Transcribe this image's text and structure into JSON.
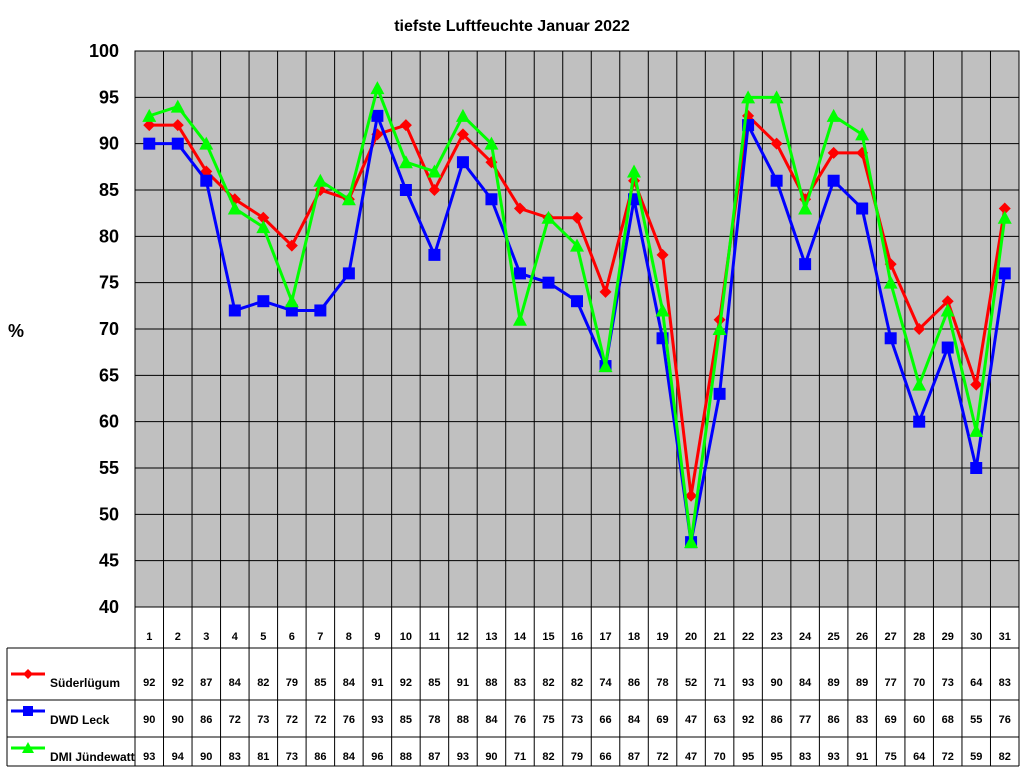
{
  "chart_data": {
    "type": "line",
    "title": "tiefste Luftfeuchte Januar 2022",
    "ylabel": "%",
    "xlabel": "",
    "ylim": [
      40,
      100
    ],
    "yticks": [
      40,
      45,
      50,
      55,
      60,
      65,
      70,
      75,
      80,
      85,
      90,
      95,
      100
    ],
    "grid": true,
    "legend": "data-table-left",
    "categories": [
      "1",
      "2",
      "3",
      "4",
      "5",
      "6",
      "7",
      "8",
      "9",
      "10",
      "11",
      "12",
      "13",
      "14",
      "15",
      "16",
      "17",
      "18",
      "19",
      "20",
      "21",
      "22",
      "23",
      "24",
      "25",
      "26",
      "27",
      "28",
      "29",
      "30",
      "31"
    ],
    "series": [
      {
        "name": "Süderlügum",
        "color": "#ff0000",
        "marker": "diamond",
        "values": [
          92,
          92,
          87,
          84,
          82,
          79,
          85,
          84,
          91,
          92,
          85,
          91,
          88,
          83,
          82,
          82,
          74,
          86,
          78,
          52,
          71,
          93,
          90,
          84,
          89,
          89,
          77,
          70,
          73,
          64,
          83
        ]
      },
      {
        "name": "DWD Leck",
        "color": "#0000ff",
        "marker": "square",
        "values": [
          90,
          90,
          86,
          72,
          73,
          72,
          72,
          76,
          93,
          85,
          78,
          88,
          84,
          76,
          75,
          73,
          66,
          84,
          69,
          47,
          63,
          92,
          86,
          77,
          86,
          83,
          69,
          60,
          68,
          55,
          76
        ]
      },
      {
        "name": "DMI Jündewatt",
        "color": "#00ff00",
        "marker": "triangle",
        "values": [
          93,
          94,
          90,
          83,
          81,
          73,
          86,
          84,
          96,
          88,
          87,
          93,
          90,
          71,
          82,
          79,
          66,
          87,
          72,
          47,
          70,
          95,
          95,
          83,
          93,
          91,
          75,
          64,
          72,
          59,
          82
        ]
      }
    ]
  }
}
